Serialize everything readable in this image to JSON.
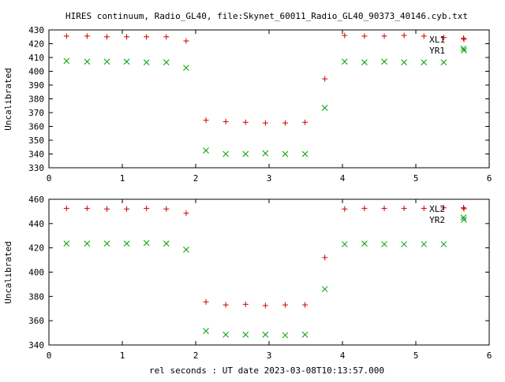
{
  "title": "HIRES continuum, Radio_GL40, file:Skynet_60011_Radio_GL40_90373_40146.cyb.txt",
  "xlabel": "rel seconds : UT date 2023-03-08T10:13:57.000",
  "colors": {
    "series_a": "#cc0000",
    "series_b": "#00a000"
  },
  "chart_data": [
    {
      "type": "scatter",
      "ylabel": "Uncalibrated",
      "xlim": [
        0,
        6
      ],
      "ylim": [
        330,
        430
      ],
      "xticks": [
        0,
        1,
        2,
        3,
        4,
        5,
        6
      ],
      "yticks": [
        330,
        340,
        350,
        360,
        370,
        380,
        390,
        400,
        410,
        420,
        430
      ],
      "legend_position": "top-right",
      "grid": false,
      "series": [
        {
          "name": "XL1",
          "marker": "plus",
          "color": "#cc0000",
          "x": [
            0.24,
            0.52,
            0.79,
            1.06,
            1.33,
            1.6,
            1.87,
            2.14,
            2.41,
            2.68,
            2.95,
            3.22,
            3.49,
            3.76,
            4.03,
            4.3,
            4.57,
            4.84,
            5.11,
            5.38,
            5.65
          ],
          "y": [
            425.5,
            425.5,
            425,
            425,
            425,
            425,
            422,
            364.5,
            363.5,
            363,
            362.5,
            362.5,
            363,
            394.5,
            426,
            425.5,
            425.5,
            426,
            425.5,
            424.5,
            424
          ]
        },
        {
          "name": "YR1",
          "marker": "cross",
          "color": "#00a000",
          "x": [
            0.24,
            0.52,
            0.79,
            1.06,
            1.33,
            1.6,
            1.87,
            2.14,
            2.41,
            2.68,
            2.95,
            3.22,
            3.49,
            3.76,
            4.03,
            4.3,
            4.57,
            4.84,
            5.11,
            5.38,
            5.65
          ],
          "y": [
            407.5,
            407,
            407,
            407,
            406.5,
            406.5,
            402.5,
            342.5,
            340,
            340,
            340.5,
            340,
            340,
            373.5,
            407,
            406.5,
            407,
            406.5,
            406.5,
            406.5,
            416.5
          ]
        }
      ]
    },
    {
      "type": "scatter",
      "ylabel": "Uncalibrated",
      "xlim": [
        0,
        6
      ],
      "ylim": [
        340,
        460
      ],
      "xticks": [
        0,
        1,
        2,
        3,
        4,
        5,
        6
      ],
      "yticks": [
        340,
        360,
        380,
        400,
        420,
        440,
        460
      ],
      "legend_position": "top-right",
      "grid": false,
      "series": [
        {
          "name": "XL2",
          "marker": "plus",
          "color": "#cc0000",
          "x": [
            0.24,
            0.52,
            0.79,
            1.06,
            1.33,
            1.6,
            1.87,
            2.14,
            2.41,
            2.68,
            2.95,
            3.22,
            3.49,
            3.76,
            4.03,
            4.3,
            4.57,
            4.84,
            5.11,
            5.38,
            5.65
          ],
          "y": [
            452.5,
            452.5,
            452,
            452,
            452.5,
            452,
            448.5,
            375.5,
            373,
            373.5,
            372.5,
            373,
            373,
            412,
            452,
            452.5,
            452.5,
            452.5,
            452.5,
            453,
            453
          ]
        },
        {
          "name": "YR2",
          "marker": "cross",
          "color": "#00a000",
          "x": [
            0.24,
            0.52,
            0.79,
            1.06,
            1.33,
            1.6,
            1.87,
            2.14,
            2.41,
            2.68,
            2.95,
            3.22,
            3.49,
            3.76,
            4.03,
            4.3,
            4.57,
            4.84,
            5.11,
            5.38,
            5.65
          ],
          "y": [
            423.5,
            423.5,
            423.5,
            423.5,
            424,
            423.5,
            418.5,
            351.5,
            348.5,
            348.5,
            348.5,
            348,
            348.5,
            386,
            423,
            423.5,
            423,
            423,
            423,
            423,
            445
          ]
        }
      ]
    }
  ]
}
